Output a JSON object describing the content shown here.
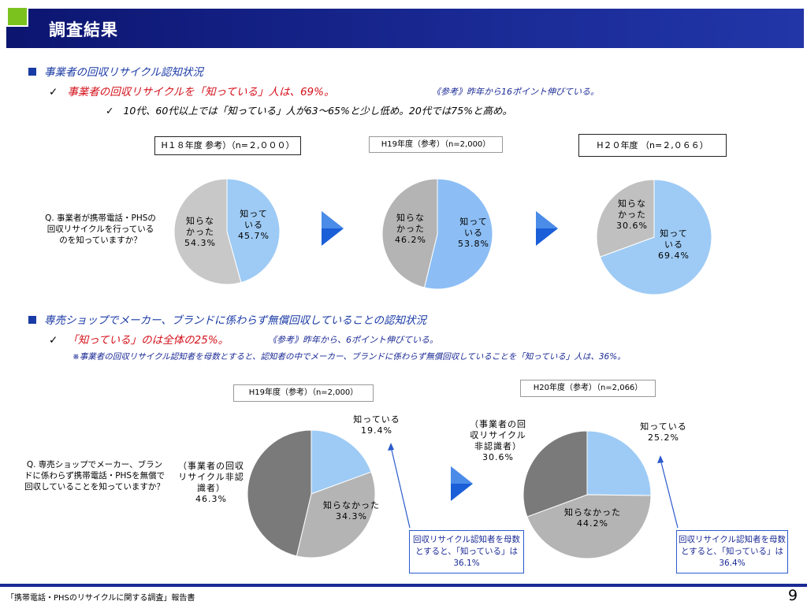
{
  "header": {
    "title": "調査結果"
  },
  "section1": {
    "heading": "事業者の回収リサイクル認知状況",
    "point1": "事業者の回収リサイクルを「知っている」人は、69%。",
    "reference": "《参考》昨年から16ポイント伸びている。",
    "point2": "10代、60代以上では「知っている」人が63～65%と少し低め。20代では75%と高め。",
    "question": "Q. 事業者が携帯電話・PHSの回収リサイクルを行っているのを知っていますか？",
    "labels": [
      "H１８年度 参考）（n=２,０００）",
      "H19年度（参考）（n=2,000）",
      "H２０年度 （n=２,０６６）"
    ]
  },
  "section2": {
    "heading": "専売ショップでメーカー、ブランドに係わらず無償回収していることの認知状況",
    "point1": "「知っている」のは全体の25%。",
    "reference": "《参考》昨年から、6ポイント伸びている。",
    "note": "※事業者の回収リサイクル認知者を母数とすると、認知者の中でメーカー、ブランドに係わらず無償回収していることを「知っている」人は、36%。",
    "question": "Q. 専売ショップでメーカー、ブランドに係わらず携帯電話・PHSを無償で回収していることを知っていますか？",
    "labels": [
      "H19年度（参考）（n=2,000）",
      "H20年度（参考）（n=2,066）"
    ],
    "note_boxes": [
      "回収リサイクル認知者を母数とすると、「知っている」は36.1%",
      "回収リサイクル認知者を母数とすると、「知っている」は36.4%"
    ]
  },
  "chart_data": [
    {
      "type": "pie",
      "title": "H１８年度 参考）（n=２,０００）",
      "slices": [
        {
          "label": "知っている",
          "value": 45.7,
          "text": "知って\nいる\n45.7%",
          "color": "#9ecbf5"
        },
        {
          "label": "知らなかった",
          "value": 54.3,
          "text": "知らな\nかった\n54.3%",
          "color": "#c8c8c8"
        }
      ]
    },
    {
      "type": "pie",
      "title": "H19年度（参考）（n=2,000）",
      "slices": [
        {
          "label": "知っている",
          "value": 53.8,
          "text": "知って\nいる\n53.8%",
          "color": "#8cbef5"
        },
        {
          "label": "知らなかった",
          "value": 46.2,
          "text": "知らな\nかった\n46.2%",
          "color": "#b4b4b4"
        }
      ]
    },
    {
      "type": "pie",
      "title": "H２０年度 （n=２,０６６）",
      "slices": [
        {
          "label": "知っている",
          "value": 69.4,
          "text": "知って\nいる\n69.4%",
          "color": "#9ecbf5"
        },
        {
          "label": "知らなかった",
          "value": 30.6,
          "text": "知らな\nかった\n30.6%",
          "color": "#c0c0c0"
        }
      ]
    },
    {
      "type": "pie",
      "title": "H19年度（参考）（n=2,000）",
      "slices": [
        {
          "label": "知っている",
          "value": 19.4,
          "text": "知っている\n19.4%",
          "color": "#9ecbf5"
        },
        {
          "label": "知らなかった",
          "value": 34.3,
          "text": "知らなかった\n34.3%",
          "color": "#b4b4b4"
        },
        {
          "label": "（事業者の回収リサイクル非認識者）",
          "value": 46.3,
          "text": "（事業者の回収\nリサイクル非認\n識者）\n46.3%",
          "color": "#7a7a7a"
        }
      ]
    },
    {
      "type": "pie",
      "title": "H20年度（参考）（n=2,066）",
      "slices": [
        {
          "label": "知っている",
          "value": 25.2,
          "text": "知っている\n25.2%",
          "color": "#9ecbf5"
        },
        {
          "label": "知らなかった",
          "value": 44.2,
          "text": "知らなかった\n44.2%",
          "color": "#b4b4b4"
        },
        {
          "label": "（事業者の回収リサイクル非認識者）",
          "value": 30.6,
          "text": "（事業者の回\n収リサイクル\n非認識者）\n30.6%",
          "color": "#7a7a7a"
        }
      ]
    }
  ],
  "footer": {
    "text": "「携帯電話・PHSのリサイクルに関する調査」報告書",
    "page": "9"
  },
  "colors": {
    "title_bar": "#1a2a95",
    "heading": "#1a3aa5",
    "emphasis": "#d4111b",
    "accent": "#7cc21f"
  }
}
